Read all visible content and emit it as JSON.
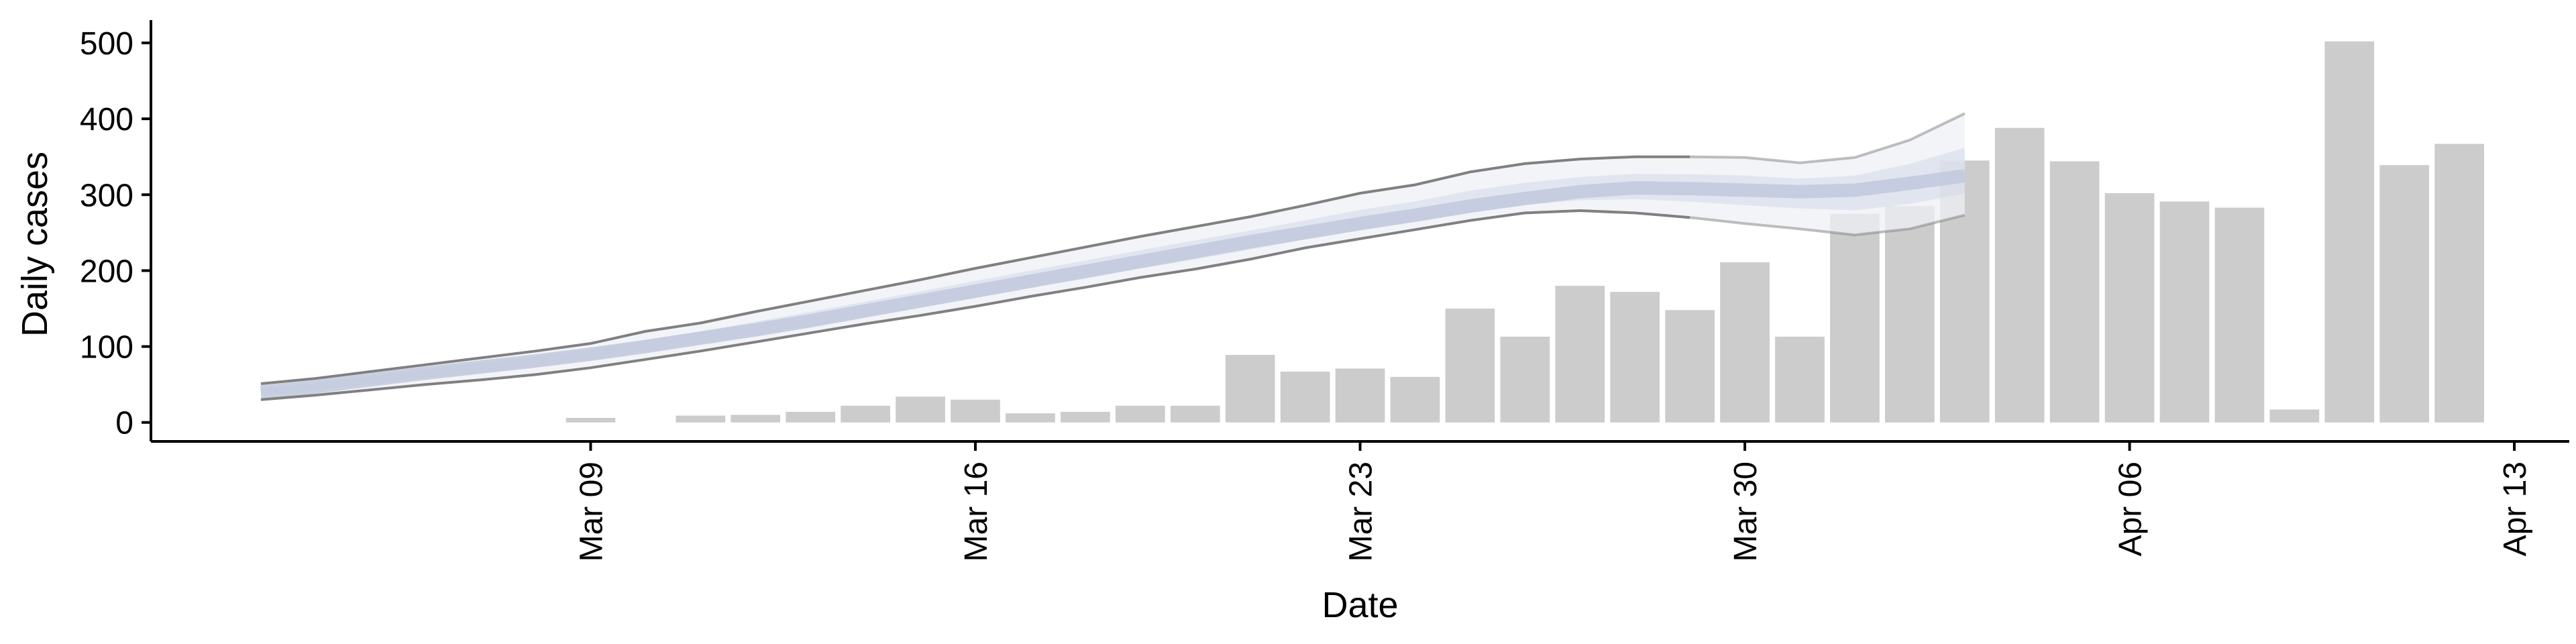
{
  "colors": {
    "bars": "#cccccc",
    "band_outer": "#eef0f6",
    "band_inner": "#d3d8e8",
    "median": "#c2c9dd",
    "bound_lines": "#808080",
    "axis": "#000000"
  },
  "chart_data": {
    "type": "bar",
    "xlabel": "Date",
    "ylabel": "Daily cases",
    "x_ticks": [
      "Mar 09",
      "Mar 16",
      "Mar 23",
      "Mar 30",
      "Apr 06",
      "Apr 13"
    ],
    "x_tick_dates": [
      "2020-03-09",
      "2020-03-16",
      "2020-03-23",
      "2020-03-30",
      "2020-04-06",
      "2020-04-13"
    ],
    "y_ticks": [
      "0",
      "100",
      "200",
      "300",
      "400",
      "500"
    ],
    "y_tick_values": [
      0,
      100,
      200,
      300,
      400,
      500
    ],
    "ylim": [
      -25,
      530
    ],
    "xlim": [
      "2020-03-01",
      "2020-04-14"
    ],
    "grid": false,
    "legend": "none",
    "bars": {
      "dates": [
        "2020-03-09",
        "2020-03-10",
        "2020-03-11",
        "2020-03-12",
        "2020-03-13",
        "2020-03-14",
        "2020-03-15",
        "2020-03-16",
        "2020-03-17",
        "2020-03-18",
        "2020-03-19",
        "2020-03-20",
        "2020-03-21",
        "2020-03-22",
        "2020-03-23",
        "2020-03-24",
        "2020-03-25",
        "2020-03-26",
        "2020-03-27",
        "2020-03-28",
        "2020-03-29",
        "2020-03-30",
        "2020-03-31",
        "2020-04-01",
        "2020-04-02",
        "2020-04-03",
        "2020-04-04",
        "2020-04-05",
        "2020-04-06",
        "2020-04-07",
        "2020-04-08",
        "2020-04-09",
        "2020-04-10",
        "2020-04-11",
        "2020-04-12"
      ],
      "values": [
        6,
        0,
        9,
        10,
        14,
        22,
        34,
        30,
        12,
        14,
        22,
        22,
        89,
        67,
        71,
        60,
        150,
        113,
        180,
        172,
        148,
        211,
        113,
        275,
        285,
        345,
        388,
        344,
        302,
        291,
        283,
        17,
        502,
        339,
        367
      ]
    },
    "nowcast": {
      "dates": [
        "2020-03-03",
        "2020-03-04",
        "2020-03-05",
        "2020-03-06",
        "2020-03-07",
        "2020-03-08",
        "2020-03-09",
        "2020-03-10",
        "2020-03-11",
        "2020-03-12",
        "2020-03-13",
        "2020-03-14",
        "2020-03-15",
        "2020-03-16",
        "2020-03-17",
        "2020-03-18",
        "2020-03-19",
        "2020-03-20",
        "2020-03-21",
        "2020-03-22",
        "2020-03-23",
        "2020-03-24",
        "2020-03-25",
        "2020-03-26",
        "2020-03-27",
        "2020-03-28",
        "2020-03-29",
        "2020-03-30",
        "2020-03-31",
        "2020-04-01",
        "2020-04-02",
        "2020-04-03"
      ],
      "median": [
        40,
        47,
        56,
        65,
        73,
        81,
        90,
        100,
        111,
        122,
        134,
        147,
        160,
        173,
        186,
        199,
        212,
        225,
        238,
        250,
        262,
        273,
        285,
        295,
        304,
        309,
        308,
        306,
        304,
        306,
        315,
        325
      ],
      "lower_90": [
        30,
        36,
        43,
        50,
        56,
        63,
        72,
        83,
        94,
        106,
        118,
        130,
        141,
        153,
        166,
        178,
        191,
        202,
        215,
        230,
        242,
        254,
        266,
        276,
        279,
        276,
        270,
        262,
        255,
        247,
        255,
        273
      ],
      "upper_90": [
        51,
        58,
        67,
        76,
        85,
        94,
        104,
        120,
        131,
        146,
        160,
        174,
        188,
        203,
        217,
        231,
        245,
        258,
        271,
        286,
        302,
        313,
        330,
        341,
        347,
        350,
        350,
        349,
        342,
        349,
        372,
        407
      ]
    }
  }
}
